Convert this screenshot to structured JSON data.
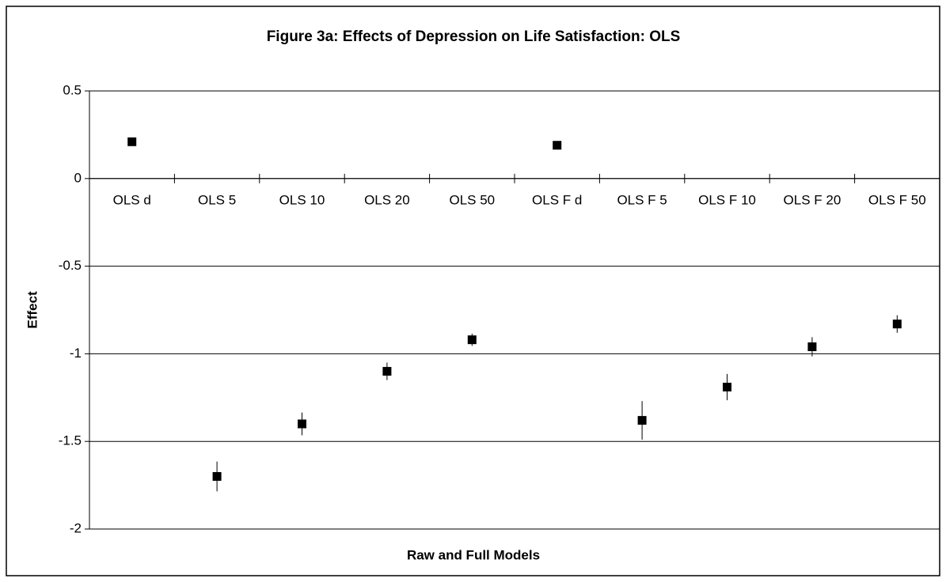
{
  "chart_data": {
    "type": "errorbar",
    "title": "Figure 3a: Effects of Depression on Life Satisfaction: OLS",
    "x_label": "Raw and Full Models",
    "y_label": "Effect",
    "categories": [
      "OLS d",
      "OLS 5",
      "OLS 10",
      "OLS 20",
      "OLS 50",
      "OLS F d",
      "OLS F 5",
      "OLS F 10",
      "OLS F 20",
      "OLS F 50"
    ],
    "values": [
      0.21,
      -1.7,
      -1.4,
      -1.1,
      -0.92,
      0.19,
      -1.38,
      -1.19,
      -0.96,
      -0.83
    ],
    "errors": [
      null,
      0.085,
      0.065,
      0.05,
      0.035,
      null,
      0.11,
      0.075,
      0.055,
      0.05
    ],
    "color": "#000000",
    "ylim": [
      -2,
      0.5
    ],
    "yticks": [
      0.5,
      0,
      -0.5,
      -1,
      -1.5,
      -2
    ],
    "grid": true
  }
}
